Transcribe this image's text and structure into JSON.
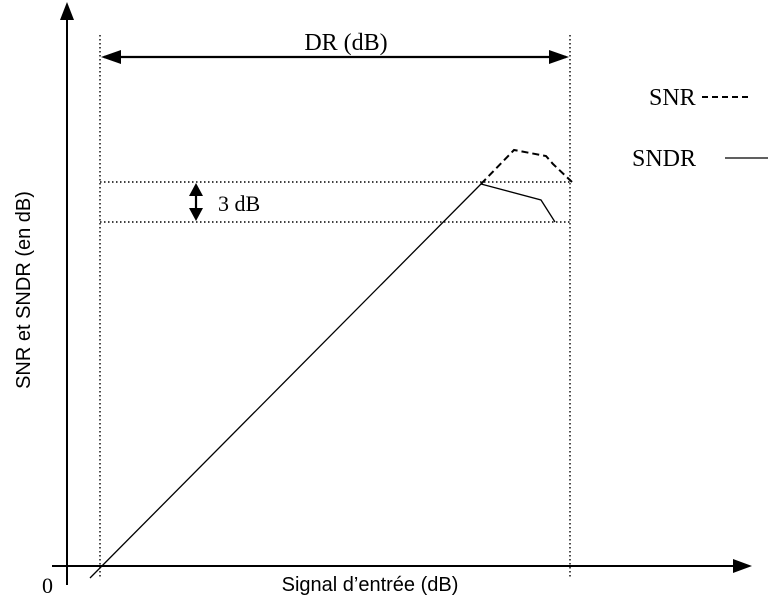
{
  "axes": {
    "x_label": "Signal d’entrée (dB)",
    "y_label": "SNR et SNDR (en dB)",
    "origin_label": "0"
  },
  "annotations": {
    "dr_label": "DR (dB)",
    "drop_label": "3 dB"
  },
  "legend": {
    "snr_label": "SNR",
    "sndr_label": "SNDR"
  },
  "colors": {
    "ink": "#000000",
    "background": "#ffffff"
  }
}
